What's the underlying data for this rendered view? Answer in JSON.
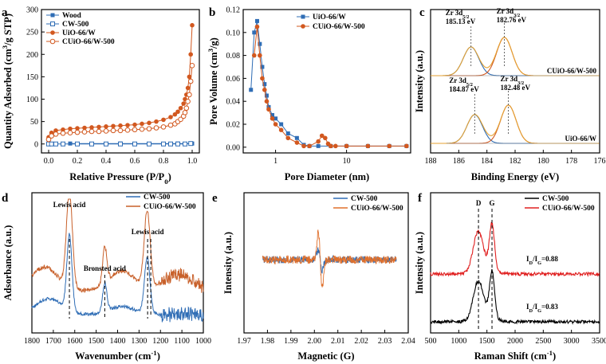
{
  "chart_data": [
    {
      "panel": "a",
      "type": "line",
      "xlabel": "Relative Pressure (P/P0)",
      "ylabel": "Quantity Adsorbed (cm3/g STP)",
      "xlim": [
        -0.05,
        1.05
      ],
      "ylim": [
        -20,
        300
      ],
      "xticks": [
        "0.0",
        "0.2",
        "0.4",
        "0.6",
        "0.8",
        "1.0"
      ],
      "yticks": [
        "0",
        "50",
        "100",
        "150",
        "200",
        "250",
        "300"
      ],
      "legend": [
        "Wood",
        "CW-500",
        "UiO-66/W",
        "CUiO-66/W-500"
      ],
      "series": [
        {
          "name": "Wood",
          "color": "#2f6db5",
          "marker": "square",
          "x": [
            0.15,
            0.5,
            0.9,
            1.0
          ],
          "y": [
            1,
            1,
            1,
            1
          ]
        },
        {
          "name": "CW-500",
          "color": "#2f6db5",
          "marker": "open-square",
          "x": [
            0.0,
            0.02,
            0.05,
            0.1,
            0.2,
            0.3,
            0.4,
            0.5,
            0.6,
            0.7,
            0.8,
            0.85,
            0.9,
            0.95,
            0.99
          ],
          "y": [
            0,
            0,
            0,
            0,
            0,
            0,
            0,
            0,
            0,
            0,
            0,
            0,
            0,
            0,
            1
          ]
        },
        {
          "name": "UiO-66/W",
          "color": "#d2581f",
          "marker": "circle",
          "x": [
            0.0,
            0.02,
            0.05,
            0.1,
            0.15,
            0.2,
            0.25,
            0.3,
            0.35,
            0.4,
            0.45,
            0.5,
            0.55,
            0.6,
            0.65,
            0.7,
            0.75,
            0.8,
            0.85,
            0.88,
            0.9,
            0.92,
            0.94,
            0.95,
            0.96,
            0.97,
            0.98,
            0.99,
            1.0
          ],
          "y": [
            15,
            25,
            30,
            32,
            34,
            35,
            36,
            37,
            38,
            39,
            40,
            41,
            42,
            43,
            45,
            47,
            50,
            54,
            60,
            66,
            72,
            80,
            90,
            100,
            110,
            125,
            150,
            200,
            265
          ]
        },
        {
          "name": "CUiO-66/W-500",
          "color": "#d2581f",
          "marker": "open-circle",
          "x": [
            0.0,
            0.02,
            0.05,
            0.1,
            0.15,
            0.2,
            0.25,
            0.3,
            0.35,
            0.4,
            0.45,
            0.5,
            0.55,
            0.6,
            0.65,
            0.7,
            0.75,
            0.8,
            0.85,
            0.88,
            0.9,
            0.92,
            0.94,
            0.95,
            0.96,
            0.97,
            0.98,
            0.99,
            1.0
          ],
          "y": [
            10,
            18,
            22,
            24,
            25,
            26,
            27,
            28,
            28,
            29,
            30,
            30,
            31,
            32,
            33,
            34,
            36,
            38,
            42,
            45,
            50,
            55,
            62,
            70,
            80,
            95,
            110,
            140,
            175
          ]
        }
      ]
    },
    {
      "panel": "b",
      "type": "line",
      "xlabel": "Pore Diameter (nm)",
      "ylabel": "Pore Volume (cm3/g)",
      "xscale": "log",
      "xlim": [
        0.35,
        80
      ],
      "ylim": [
        -0.005,
        0.12
      ],
      "xticks": [
        "1",
        "10"
      ],
      "yticks": [
        "0.00",
        "0.02",
        "0.04",
        "0.06",
        "0.08",
        "0.10",
        "0.12"
      ],
      "legend": [
        "UiO-66/W",
        "CUiO-66/W-500"
      ],
      "series": [
        {
          "name": "UiO-66/W",
          "color": "#2f6db5",
          "marker": "square",
          "x": [
            0.45,
            0.5,
            0.55,
            0.6,
            0.65,
            0.7,
            0.75,
            0.8,
            0.9,
            1.0,
            1.2,
            1.5,
            2.0,
            2.5,
            3.0,
            4.0,
            6.0,
            10.0,
            20.0,
            40.0,
            70.0
          ],
          "y": [
            0.05,
            0.1,
            0.11,
            0.09,
            0.07,
            0.055,
            0.045,
            0.035,
            0.028,
            0.025,
            0.02,
            0.012,
            0.008,
            0.002,
            0.001,
            0.001,
            0.001,
            0.001,
            0.001,
            0.001,
            0.001
          ]
        },
        {
          "name": "CUiO-66/W-500",
          "color": "#d2581f",
          "marker": "circle",
          "x": [
            0.5,
            0.55,
            0.6,
            0.65,
            0.7,
            0.75,
            0.8,
            0.9,
            1.0,
            1.2,
            1.5,
            2.0,
            2.5,
            3.0,
            4.0,
            4.5,
            5.0,
            5.5,
            6.0,
            7.0,
            10.0,
            20.0,
            40.0,
            70.0
          ],
          "y": [
            0.08,
            0.105,
            0.08,
            0.06,
            0.05,
            0.04,
            0.033,
            0.025,
            0.02,
            0.015,
            0.008,
            0.004,
            0.001,
            0.001,
            0.005,
            0.01,
            0.008,
            0.003,
            0.001,
            0.001,
            0.001,
            0.001,
            0.001,
            0.001
          ]
        }
      ]
    },
    {
      "panel": "c",
      "type": "line",
      "xlabel": "Binding Energy (eV)",
      "ylabel": "Intensity (a.u.)",
      "xlim": [
        188,
        176
      ],
      "xreverse": true,
      "xticks": [
        "188",
        "186",
        "184",
        "182",
        "180",
        "178",
        "176"
      ],
      "samples": [
        {
          "label": "CUiO-66/W-500",
          "peaks": [
            {
              "text": "Zr 3d5/2",
              "value": "185.13 eV",
              "center": 185.13
            },
            {
              "text": "Zr 3d3/2",
              "value": "182.76 eV",
              "center": 182.76
            }
          ]
        },
        {
          "label": "UiO-66/W",
          "peaks": [
            {
              "text": "Zr 3d5/2",
              "value": "184.87 eV",
              "center": 184.87
            },
            {
              "text": "Zr 3d3/2",
              "value": "182.48 eV",
              "center": 182.48
            }
          ]
        }
      ],
      "colors": {
        "fit_a": "#2f6db5",
        "fit_b": "#d2581f",
        "envelope": "#e5a232"
      }
    },
    {
      "panel": "d",
      "type": "line",
      "xlabel": "Wavenumber (cm-1)",
      "ylabel": "Adsorbance (a.u.)",
      "xlim": [
        1800,
        1000
      ],
      "xreverse": true,
      "xticks": [
        "1800",
        "1700",
        "1600",
        "1500",
        "1400",
        "1300",
        "1200",
        "1100",
        "1000"
      ],
      "legend": [
        "CW-500",
        "CUiO-66/W-500"
      ],
      "annotations": [
        {
          "text": "Lewis acid",
          "x": 1625
        },
        {
          "text": "Bronsted acid",
          "x": 1460
        },
        {
          "text": "Lewis acid",
          "x": 1260
        }
      ],
      "colors": {
        "CW-500": "#2f6db5",
        "CUiO-66/W-500": "#c8602a"
      }
    },
    {
      "panel": "e",
      "type": "line",
      "xlabel": "Magnetic (G)",
      "ylabel": "Intensity (a.u.)",
      "xlim": [
        1.97,
        2.04
      ],
      "xticks": [
        "1.97",
        "1.98",
        "1.99",
        "2.00",
        "2.01",
        "2.02",
        "2.03",
        "2.04"
      ],
      "legend": [
        "CW-500",
        "CUiO-66/W-500"
      ],
      "colors": {
        "CW-500": "#2f6db5",
        "CUiO-66/W-500": "#e0702c"
      }
    },
    {
      "panel": "f",
      "type": "line",
      "xlabel": "Raman Shift (cm-1)",
      "ylabel": "Intensity (a.u.)",
      "xlim": [
        500,
        3500
      ],
      "xticks": [
        "500",
        "1000",
        "1500",
        "2000",
        "2500",
        "3000",
        "3500"
      ],
      "legend": [
        "CW-500",
        "CUiO-66/W-500"
      ],
      "peak_labels": [
        {
          "text": "D",
          "x": 1350
        },
        {
          "text": "G",
          "x": 1590
        }
      ],
      "ratios": [
        {
          "sample": "CUiO-66/W-500",
          "text": "ID/IG=0.88"
        },
        {
          "sample": "CW-500",
          "text": "ID/IG=0.83"
        }
      ],
      "colors": {
        "CW-500": "#000000",
        "CUiO-66/W-500": "#e02020"
      }
    }
  ]
}
